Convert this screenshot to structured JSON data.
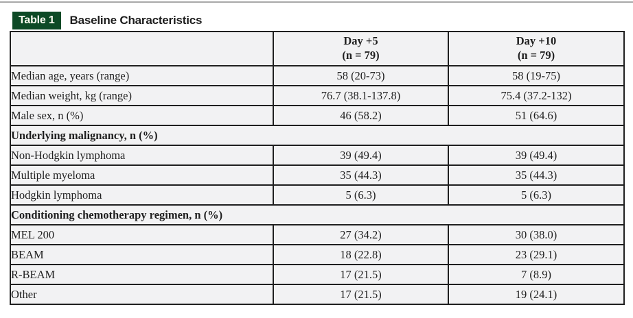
{
  "page": {
    "background_color": "#ffffff",
    "top_rule_color": "#a8a8a8"
  },
  "title_band": {
    "badge_label": "Table 1",
    "badge_background_color": "#0d4a26",
    "badge_text_color": "#fdfdf2",
    "title": "Baseline Characteristics"
  },
  "table": {
    "border_color": "#1f1f1f",
    "cell_background_color": "#f2f2f3",
    "columns": [
      {
        "line1": "",
        "line2": ""
      },
      {
        "line1": "Day +5",
        "line2": "(n = 79)"
      },
      {
        "line1": "Day +10",
        "line2": "(n = 79)"
      }
    ],
    "rows": [
      {
        "type": "data",
        "label": "Median age, years (range)",
        "day5": "58 (20-73)",
        "day10": "58 (19-75)"
      },
      {
        "type": "data",
        "label": "Median weight, kg (range)",
        "day5": "76.7 (38.1-137.8)",
        "day10": "75.4 (37.2-132)"
      },
      {
        "type": "data",
        "label": "Male sex, n (%)",
        "day5": "46 (58.2)",
        "day10": "51 (64.6)"
      },
      {
        "type": "section",
        "label": "Underlying malignancy, n (%)"
      },
      {
        "type": "data",
        "label": "Non-Hodgkin lymphoma",
        "day5": "39 (49.4)",
        "day10": "39 (49.4)"
      },
      {
        "type": "data",
        "label": "Multiple myeloma",
        "day5": "35 (44.3)",
        "day10": "35 (44.3)"
      },
      {
        "type": "data",
        "label": "Hodgkin lymphoma",
        "day5": "5 (6.3)",
        "day10": "5 (6.3)"
      },
      {
        "type": "section",
        "label": "Conditioning chemotherapy regimen, n (%)"
      },
      {
        "type": "data",
        "label": "MEL 200",
        "day5": "27 (34.2)",
        "day10": "30 (38.0)"
      },
      {
        "type": "data",
        "label": "BEAM",
        "day5": "18 (22.8)",
        "day10": "23 (29.1)"
      },
      {
        "type": "data",
        "label": "R-BEAM",
        "day5": "17 (21.5)",
        "day10": "7 (8.9)"
      },
      {
        "type": "data",
        "label": "Other",
        "day5": "17 (21.5)",
        "day10": "19 (24.1)"
      }
    ]
  }
}
